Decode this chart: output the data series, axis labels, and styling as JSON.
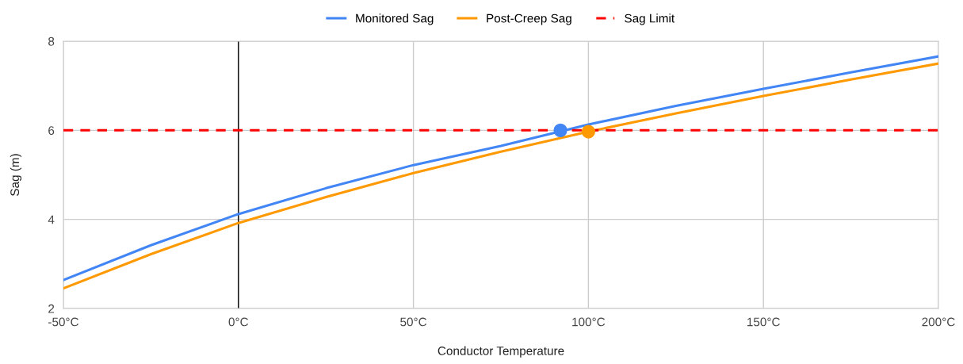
{
  "chart_data": {
    "type": "line",
    "xlabel": "Conductor Temperature",
    "ylabel": "Sag (m)",
    "xlim": [
      -50,
      200
    ],
    "ylim": [
      2,
      8
    ],
    "xticks": [
      {
        "value": -50,
        "label": "-50°C"
      },
      {
        "value": 0,
        "label": "0°C"
      },
      {
        "value": 50,
        "label": "50°C"
      },
      {
        "value": 100,
        "label": "100°C"
      },
      {
        "value": 150,
        "label": "150°C"
      },
      {
        "value": 200,
        "label": "200°C"
      }
    ],
    "yticks": [
      2,
      4,
      6,
      8
    ],
    "grid": true,
    "legend": "top",
    "ref_lines": [
      {
        "axis": "x",
        "value": 0,
        "color": "#000000"
      }
    ],
    "series": [
      {
        "name": "Monitored Sag",
        "color": "#4285f4",
        "x": [
          -50,
          -25,
          0,
          25,
          50,
          75,
          100,
          125,
          150,
          175,
          200
        ],
        "values": [
          2.64,
          3.42,
          4.12,
          4.7,
          5.22,
          5.65,
          6.13,
          6.55,
          6.93,
          7.3,
          7.66
        ]
      },
      {
        "name": "Post-Creep Sag",
        "color": "#ff9900",
        "x": [
          -50,
          -25,
          0,
          25,
          50,
          75,
          100,
          125,
          150,
          175,
          200
        ],
        "values": [
          2.45,
          3.22,
          3.92,
          4.5,
          5.04,
          5.52,
          5.97,
          6.38,
          6.77,
          7.14,
          7.5
        ]
      },
      {
        "name": "Sag Limit",
        "color": "#ff0000",
        "line_style": "dashed",
        "x": [
          -50,
          200
        ],
        "values": [
          6,
          6
        ]
      },
      {
        "type": "scatter",
        "marker": "circle",
        "color": "#4285f4",
        "x": [
          92
        ],
        "values": [
          6.0
        ]
      },
      {
        "type": "scatter",
        "marker": "circle",
        "color": "#ff9900",
        "x": [
          100
        ],
        "values": [
          5.97
        ]
      }
    ]
  }
}
